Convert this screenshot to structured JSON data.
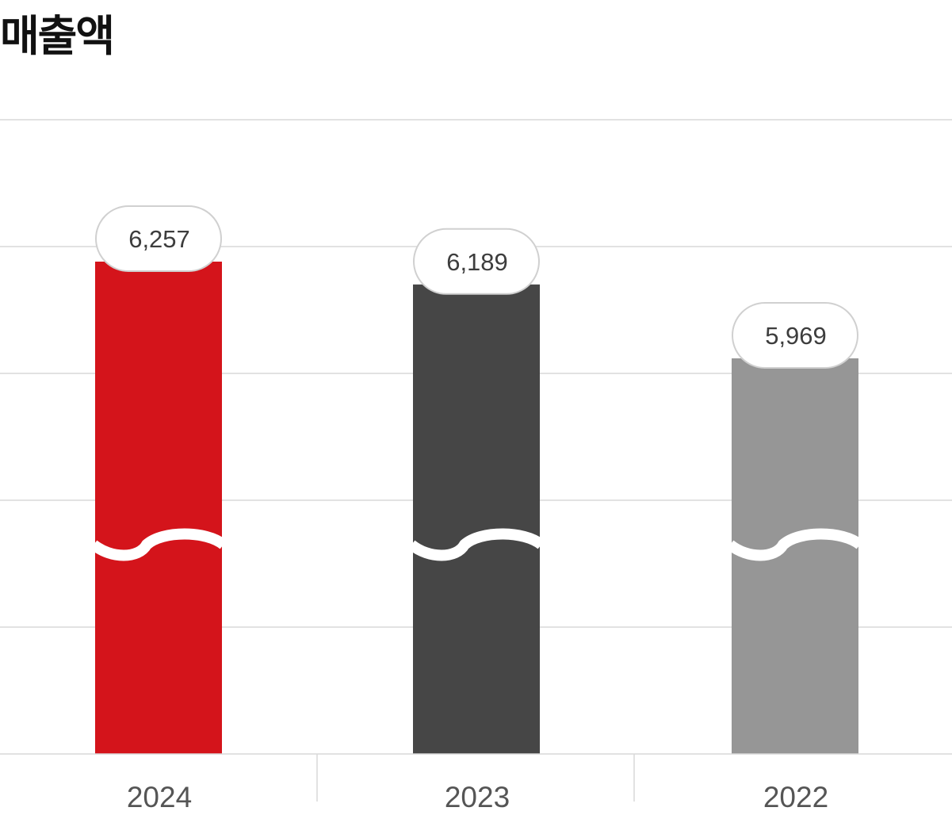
{
  "title": "매출액",
  "chart_data": {
    "type": "bar",
    "title": "매출액",
    "categories": [
      "2024",
      "2023",
      "2022"
    ],
    "values": [
      6257,
      6189,
      5969
    ],
    "value_labels": [
      "6,257",
      "6,189",
      "5,969"
    ],
    "colors": [
      "#d4141b",
      "#464646",
      "#969696"
    ],
    "axis_break": true,
    "grid": true,
    "xlabel": "",
    "ylabel": ""
  }
}
